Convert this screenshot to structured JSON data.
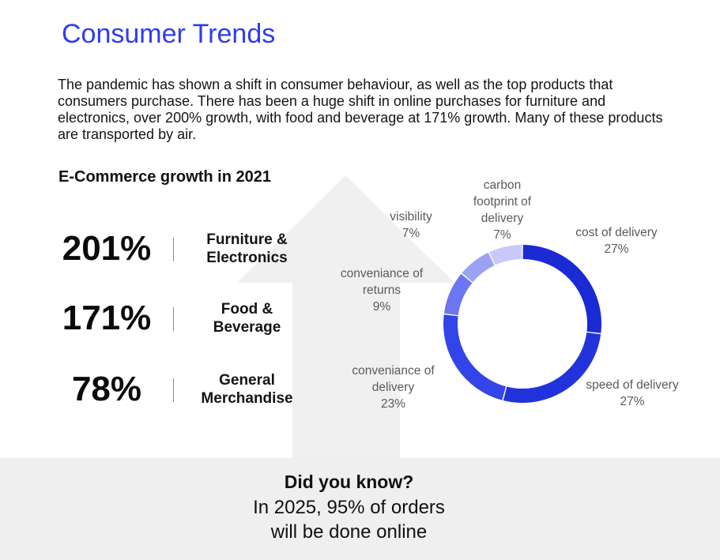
{
  "page": {
    "title": "Consumer Trends",
    "intro": "The pandemic has shown a shift in consumer behaviour, as well as the top products that consumers purchase. There has been a huge shift in online purchases for furniture and electronics, over 200% growth, with food and beverage at 171% growth. Many of these products are transported by air."
  },
  "growth": {
    "heading": "E-Commerce growth in 2021",
    "items": [
      {
        "value": "201%",
        "label": "Furniture & Electronics"
      },
      {
        "value": "171%",
        "label": "Food & Beverage"
      },
      {
        "value": "78%",
        "label": "General Merchandise"
      }
    ]
  },
  "chart_data": {
    "type": "pie",
    "subtype": "donut",
    "title": "",
    "slices": [
      {
        "label": "cost of delivery",
        "value": 27,
        "display": "27%",
        "color": "#1a2bd4"
      },
      {
        "label": "speed of delivery",
        "value": 27,
        "display": "27%",
        "color": "#2333db"
      },
      {
        "label": "conveniance of delivery",
        "value": 23,
        "display": "23%",
        "color": "#3344e8"
      },
      {
        "label": "conveniance of returns",
        "value": 9,
        "display": "9%",
        "color": "#6c76f0"
      },
      {
        "label": "visibility",
        "value": 7,
        "display": "7%",
        "color": "#9ba1f4"
      },
      {
        "label": "carbon footprint of delivery",
        "value": 7,
        "display": "7%",
        "color": "#c7caf8"
      }
    ]
  },
  "did_you_know": {
    "title": "Did you know?",
    "text": "In 2025, 95% of orders will be done online"
  },
  "colors": {
    "accent": "#2f3cf0",
    "arrow": "#f0f0f0",
    "band": "#efefef"
  }
}
